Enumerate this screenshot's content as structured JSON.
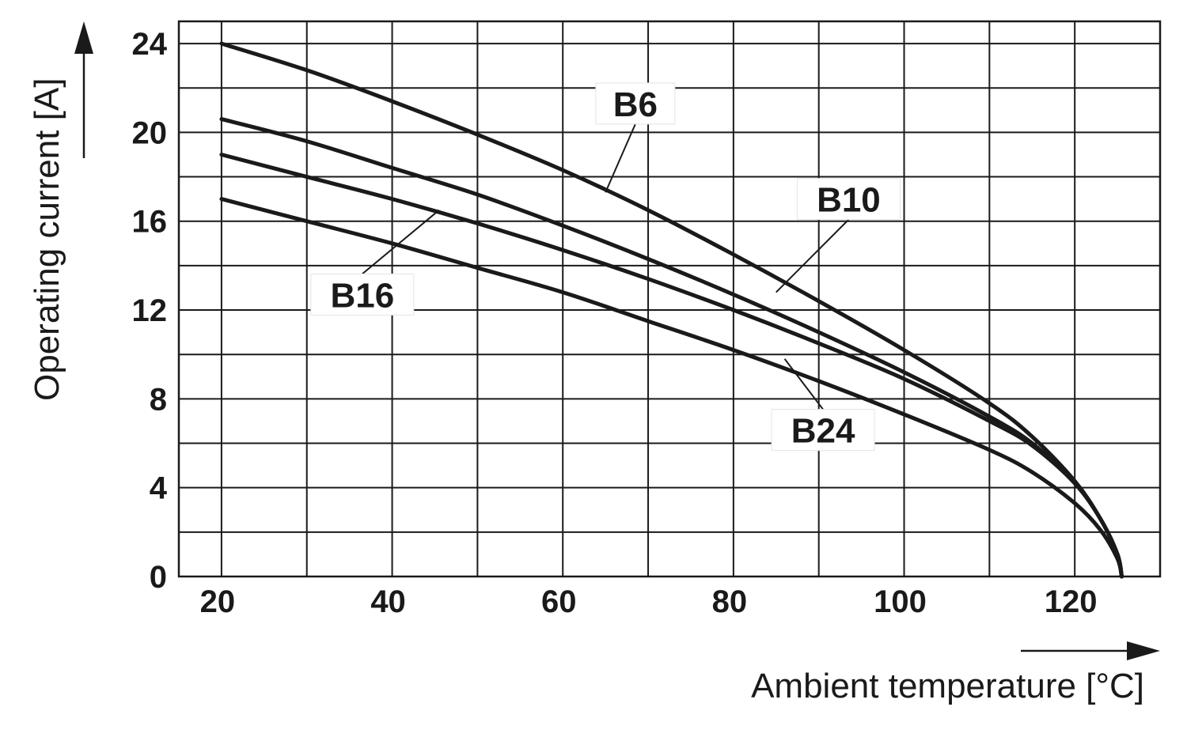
{
  "chart_data": {
    "type": "line",
    "title": "",
    "xlabel": "Ambient temperature [°C]",
    "ylabel": "Operating current [A]",
    "xlim": [
      15,
      130
    ],
    "ylim": [
      0,
      25
    ],
    "x_ticks": [
      20,
      40,
      60,
      80,
      100,
      120
    ],
    "y_ticks": [
      0,
      4,
      8,
      12,
      16,
      20,
      24
    ],
    "x_grid_step": 10,
    "y_grid_step": 2,
    "grid": true,
    "legend": "inline labels",
    "line_color": "#1a1a1a",
    "series": [
      {
        "name": "B6",
        "x": [
          20,
          30,
          40,
          50,
          60,
          70,
          80,
          90,
          100,
          110,
          115,
          120,
          123,
          125,
          125.5
        ],
        "y": [
          24,
          22.8,
          21.4,
          19.9,
          18.3,
          16.5,
          14.5,
          12.4,
          10.2,
          7.8,
          6.3,
          4.3,
          2.6,
          1.0,
          0
        ]
      },
      {
        "name": "B10",
        "x": [
          20,
          30,
          40,
          50,
          60,
          70,
          80,
          90,
          100,
          110,
          115,
          120,
          123,
          125,
          125.5
        ],
        "y": [
          20.6,
          19.6,
          18.4,
          17.2,
          15.8,
          14.3,
          12.7,
          11.0,
          9.2,
          7.2,
          6.0,
          4.2,
          2.6,
          1.0,
          0
        ]
      },
      {
        "name": "B16",
        "x": [
          20,
          30,
          40,
          50,
          60,
          70,
          80,
          90,
          100,
          110,
          115,
          120,
          123,
          125,
          125.5
        ],
        "y": [
          19,
          18.0,
          17.0,
          15.9,
          14.7,
          13.4,
          12.0,
          10.5,
          8.9,
          7.0,
          5.9,
          4.2,
          2.6,
          1.0,
          0
        ]
      },
      {
        "name": "B24",
        "x": [
          20,
          30,
          40,
          50,
          60,
          70,
          80,
          90,
          100,
          110,
          115,
          120,
          123,
          125,
          125.5
        ],
        "y": [
          17,
          16.0,
          15.0,
          13.9,
          12.8,
          11.5,
          10.2,
          8.8,
          7.3,
          5.7,
          4.7,
          3.3,
          2.1,
          0.8,
          0
        ]
      }
    ],
    "labels": [
      {
        "text": "B6",
        "series": "B6",
        "x": 68.5,
        "y": 21.3,
        "point_x": 65,
        "point_y": 17.3
      },
      {
        "text": "B10",
        "series": "B10",
        "x": 93.5,
        "y": 17.0,
        "point_x": 85,
        "point_y": 12.8
      },
      {
        "text": "B16",
        "series": "B16",
        "x": 36.5,
        "y": 12.7,
        "point_x": 45.5,
        "point_y": 16.5
      },
      {
        "text": "B24",
        "series": "B24",
        "x": 90.5,
        "y": 6.6,
        "point_x": 86,
        "point_y": 9.8
      }
    ]
  }
}
